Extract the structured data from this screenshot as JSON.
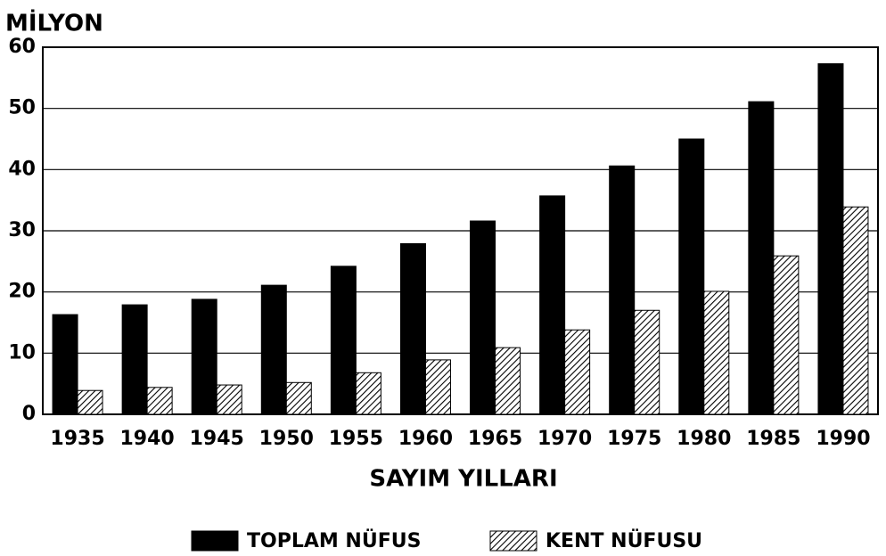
{
  "chart_data": {
    "type": "bar",
    "title": "MİLYON",
    "x_label": "SAYIM YILLARI",
    "categories": [
      "1935",
      "1940",
      "1945",
      "1950",
      "1955",
      "1960",
      "1965",
      "1970",
      "1975",
      "1980",
      "1985",
      "1990"
    ],
    "series": [
      {
        "name": "TOPLAM NÜFUS",
        "color": "#000000",
        "fill": "solid",
        "values": [
          16.3,
          17.9,
          18.8,
          21.1,
          24.2,
          27.9,
          31.6,
          35.7,
          40.6,
          45.0,
          51.1,
          57.3
        ]
      },
      {
        "name": "KENT NÜFUSU",
        "color": "#000000",
        "fill": "hatch",
        "values": [
          3.9,
          4.4,
          4.8,
          5.2,
          6.8,
          8.9,
          10.9,
          13.8,
          17.0,
          20.1,
          25.9,
          33.9
        ]
      }
    ],
    "ylim": [
      0,
      60
    ],
    "yticks": [
      0,
      10,
      20,
      30,
      40,
      50,
      60
    ],
    "grid": true,
    "legend": "bottom"
  }
}
